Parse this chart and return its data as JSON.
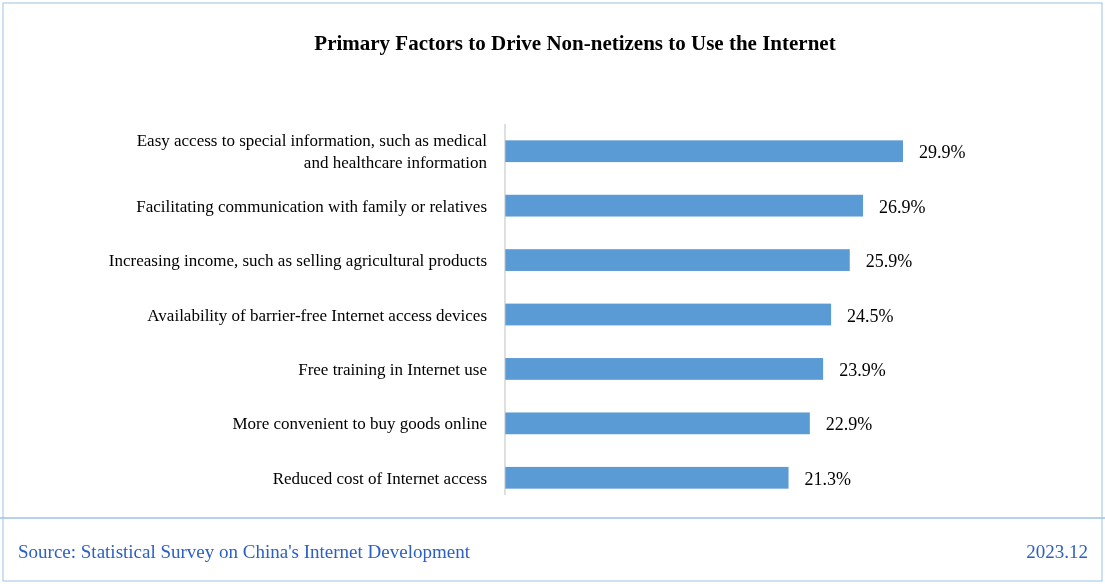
{
  "chart_data": {
    "type": "bar",
    "orientation": "horizontal",
    "relative": false,
    "data_labels": true,
    "title": "Primary Factors to Drive Non-netizens to Use the Internet",
    "categories": [
      "Easy access to special information, such as medical\nand healthcare information",
      "Facilitating communication with family or relatives",
      "Increasing income, such as selling agricultural products",
      "Availability of barrier-free Internet access devices",
      "Free training in Internet use",
      "More convenient to buy goods online",
      "Reduced cost of Internet access"
    ],
    "values": [
      29.9,
      26.9,
      25.9,
      24.5,
      23.9,
      22.9,
      21.3
    ],
    "value_labels": [
      "29.9%",
      "26.9%",
      "25.9%",
      "24.5%",
      "23.9%",
      "22.9%",
      "21.3%"
    ],
    "color": "#5b9bd5",
    "annotations": [
      "Source: Statistical Survey on China's Internet Development",
      "2023.12"
    ]
  }
}
